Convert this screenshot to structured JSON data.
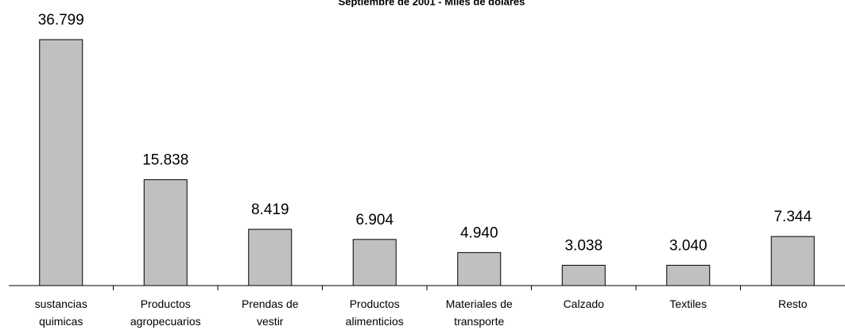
{
  "chart_data": {
    "type": "bar",
    "title": "Septiembre de 2001 - Miles de dólares",
    "categories": [
      "sustancias quimicas",
      "Productos agropecuarios",
      "Prendas de vestir",
      "Productos alimenticios",
      "Materiales de transporte",
      "Calzado",
      "Textiles",
      "Resto"
    ],
    "values": [
      36.799,
      15.838,
      8.419,
      6.904,
      4.94,
      3.038,
      3.04,
      7.344
    ],
    "value_labels": [
      "36.799",
      "15.838",
      "8.419",
      "6.904",
      "4.940",
      "3.038",
      "3.040",
      "7.344"
    ],
    "color": "#c0c0c0",
    "ylim": [
      0,
      40
    ]
  }
}
